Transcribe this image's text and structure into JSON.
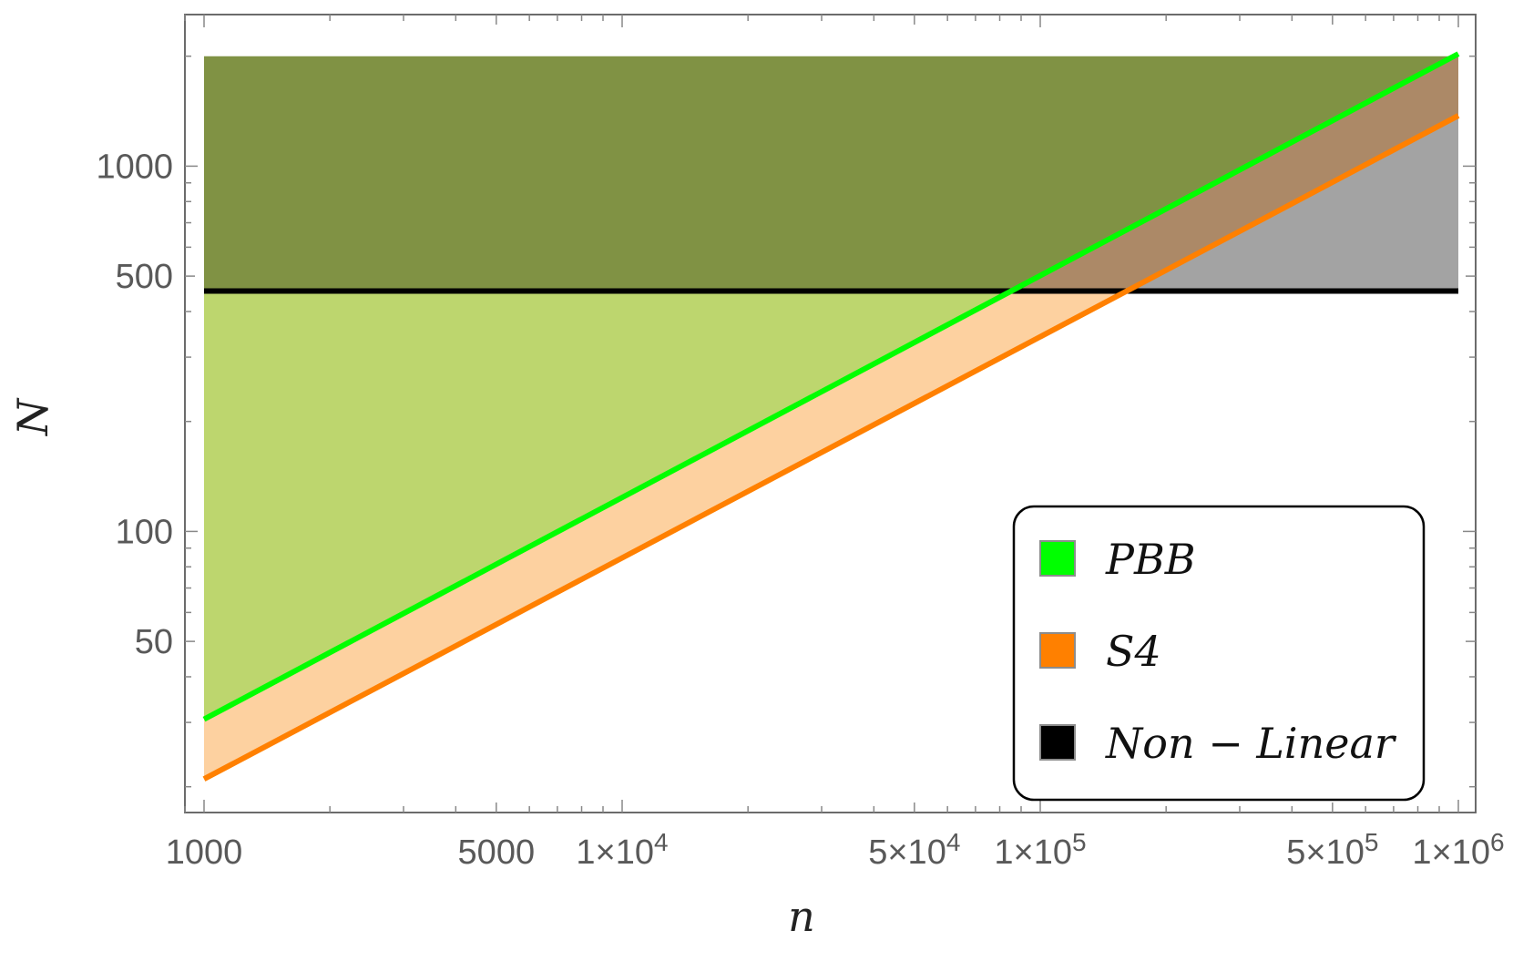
{
  "chart_data": {
    "type": "area",
    "xlabel": "n",
    "ylabel": "N",
    "x_scale": "log",
    "y_scale": "log",
    "xlim": [
      900,
      1100000
    ],
    "ylim": [
      17,
      2600
    ],
    "x_ticks": [
      {
        "value": 1000,
        "label": "1000"
      },
      {
        "value": 5000,
        "label": "5000"
      },
      {
        "value": 10000,
        "mantissa": "1",
        "base": "10",
        "exp": "4"
      },
      {
        "value": 50000,
        "mantissa": "5",
        "base": "10",
        "exp": "4"
      },
      {
        "value": 100000,
        "mantissa": "1",
        "base": "10",
        "exp": "5"
      },
      {
        "value": 500000,
        "mantissa": "5",
        "base": "10",
        "exp": "5"
      },
      {
        "value": 1000000,
        "mantissa": "1",
        "base": "10",
        "exp": "6"
      }
    ],
    "y_ticks": [
      {
        "value": 50,
        "label": "50"
      },
      {
        "value": 100,
        "label": "100"
      },
      {
        "value": 500,
        "label": "500"
      },
      {
        "value": 1000,
        "label": "1000"
      }
    ],
    "series": [
      {
        "name": "PBB",
        "color": "#00ff00",
        "fill": "#bdd66e",
        "x": [
          1000,
          1000000
        ],
        "y": [
          30.6,
          2030
        ]
      },
      {
        "name": "S4",
        "color": "#ff8000",
        "fill": "#fdd1a0",
        "x": [
          1000,
          1000000
        ],
        "y": [
          21.0,
          1375
        ]
      },
      {
        "name": "Non − Linear",
        "color": "#000000",
        "fill": "#a3a3a3",
        "x": [
          1000,
          1000000
        ],
        "y": [
          455,
          455
        ]
      }
    ],
    "region_top": 2000,
    "overlap_colors": {
      "pbb_nonlinear": "#809244",
      "s4_nonlinear": "#ac8967"
    },
    "grid": false,
    "legend_position": "bottom-right",
    "legend": [
      {
        "label": "PBB",
        "swatch": "#00ff00"
      },
      {
        "label": "S4",
        "swatch": "#ff8000"
      },
      {
        "label": "Non − Linear",
        "swatch": "#000000"
      }
    ]
  }
}
